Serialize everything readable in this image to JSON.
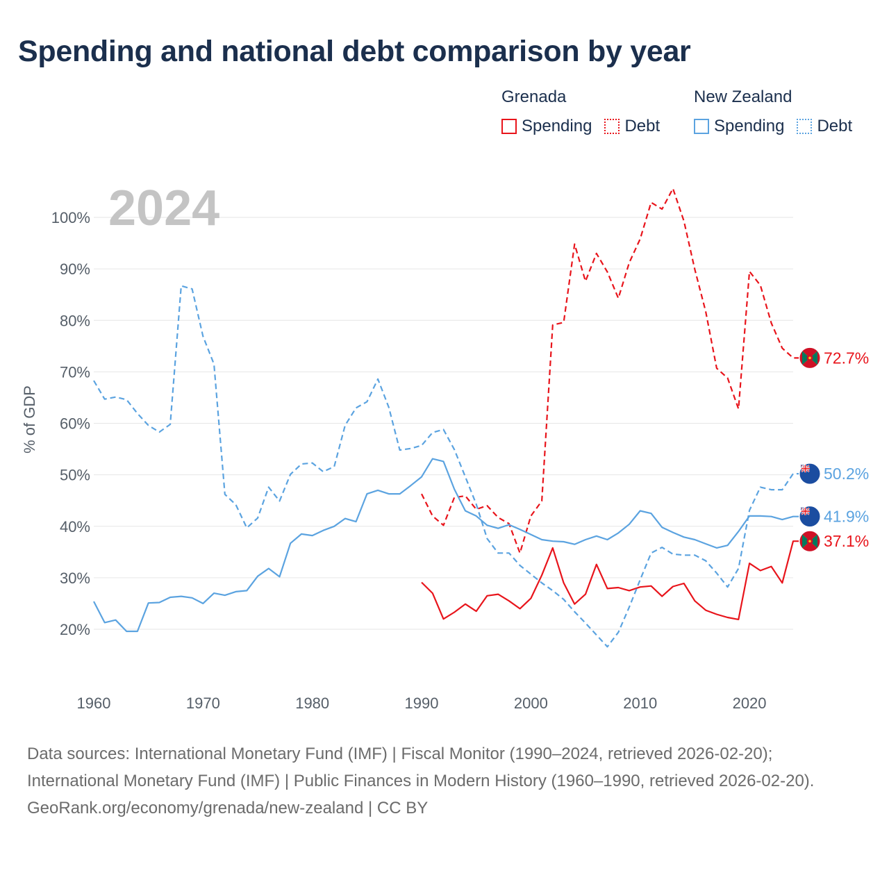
{
  "title": "Spending and national debt comparison by year",
  "colors": {
    "grenada": "#e8141b",
    "new_zealand": "#5ba3e0",
    "title": "#1b2f4d",
    "grid": "#e6e6e6"
  },
  "legend": {
    "grenada": {
      "name": "Grenada",
      "spending": "Spending",
      "debt": "Debt"
    },
    "new_zealand": {
      "name": "New Zealand",
      "spending": "Spending",
      "debt": "Debt"
    }
  },
  "footer": {
    "sources": "Data sources: International Monetary Fund (IMF) | Fiscal Monitor (1990–2024, retrieved 2026-02-20); International Monetary Fund (IMF) | Public Finances in Modern History (1960–1990, retrieved 2026-02-20).",
    "credit": "GeoRank.org/economy/grenada/new-zealand | CC BY"
  },
  "chart_data": {
    "type": "line",
    "title": "Spending and national debt comparison by year",
    "year_label": "2024",
    "ylabel": "% of GDP",
    "xlabel": "",
    "xlim": [
      1960,
      2024
    ],
    "ylim": [
      10,
      105
    ],
    "x_ticks": [
      "1960",
      "1970",
      "1980",
      "1990",
      "2000",
      "2010",
      "2020"
    ],
    "y_ticks": [
      "20%",
      "30%",
      "40%",
      "50%",
      "60%",
      "70%",
      "80%",
      "90%",
      "100%"
    ],
    "series": [
      {
        "name": "Grenada Spending",
        "country": "grenada",
        "style": "solid",
        "start_year": 1990,
        "values": [
          29.1,
          27.0,
          22.0,
          23.3,
          24.9,
          23.5,
          26.5,
          26.8,
          25.5,
          24.0,
          26.0,
          30.5,
          35.8,
          29.0,
          24.9,
          26.8,
          32.6,
          27.9,
          28.1,
          27.5,
          28.2,
          28.4,
          26.4,
          28.3,
          28.9,
          25.5,
          23.7,
          22.9,
          22.3,
          21.9,
          32.8,
          31.4,
          32.2,
          29.0,
          37.1
        ],
        "end_label": "37.1%"
      },
      {
        "name": "Grenada Debt",
        "country": "grenada",
        "style": "dashed",
        "start_year": 1990,
        "values": [
          46.3,
          42.0,
          40.2,
          45.6,
          45.9,
          43.3,
          44.0,
          41.7,
          40.5,
          34.8,
          42.0,
          44.9,
          79.1,
          79.6,
          94.8,
          87.6,
          93.0,
          89.4,
          84.3,
          91.2,
          95.8,
          102.9,
          101.6,
          105.6,
          99.3,
          89.9,
          81.7,
          70.7,
          68.8,
          62.8,
          89.5,
          86.8,
          79.5,
          74.6,
          72.7
        ],
        "end_label": "72.7%"
      },
      {
        "name": "New Zealand Spending",
        "country": "new_zealand",
        "style": "solid",
        "start_year": 1960,
        "values": [
          25.4,
          21.3,
          21.8,
          19.6,
          19.6,
          25.1,
          25.2,
          26.2,
          26.4,
          26.1,
          25.0,
          27.0,
          26.6,
          27.3,
          27.5,
          30.3,
          31.8,
          30.2,
          36.7,
          38.5,
          38.2,
          39.2,
          40.0,
          41.5,
          40.9,
          46.3,
          47.0,
          46.3,
          46.3,
          47.9,
          49.6,
          53.1,
          52.6,
          47.2,
          43.0,
          42.0,
          40.2,
          39.6,
          40.3,
          39.4,
          38.4,
          37.4,
          37.1,
          37.0,
          36.5,
          37.4,
          38.1,
          37.4,
          38.7,
          40.4,
          43.0,
          42.5,
          39.8,
          38.8,
          37.9,
          37.4,
          36.6,
          35.8,
          36.3,
          39.0,
          42.0,
          42.0,
          41.9,
          41.3,
          41.9
        ],
        "end_label": "41.9%"
      },
      {
        "name": "New Zealand Debt",
        "country": "new_zealand",
        "style": "dashed",
        "start_year": 1960,
        "values": [
          68.3,
          64.7,
          65.1,
          64.6,
          61.9,
          59.6,
          58.3,
          59.8,
          86.7,
          86.1,
          76.9,
          71.5,
          46.2,
          44.2,
          39.7,
          41.6,
          47.6,
          44.9,
          50.1,
          52.1,
          52.3,
          50.6,
          51.6,
          59.6,
          63.0,
          64.2,
          68.6,
          63.1,
          54.8,
          55.1,
          55.7,
          58.2,
          58.8,
          54.9,
          49.6,
          44.3,
          37.6,
          34.8,
          34.8,
          32.4,
          30.7,
          29.0,
          27.5,
          25.8,
          23.4,
          21.2,
          18.9,
          16.6,
          19.4,
          24.3,
          29.6,
          34.8,
          35.9,
          34.6,
          34.4,
          34.4,
          33.3,
          30.9,
          28.2,
          31.8,
          43.1,
          47.6,
          47.1,
          47.1,
          50.2
        ],
        "end_label": "50.2%"
      }
    ]
  }
}
